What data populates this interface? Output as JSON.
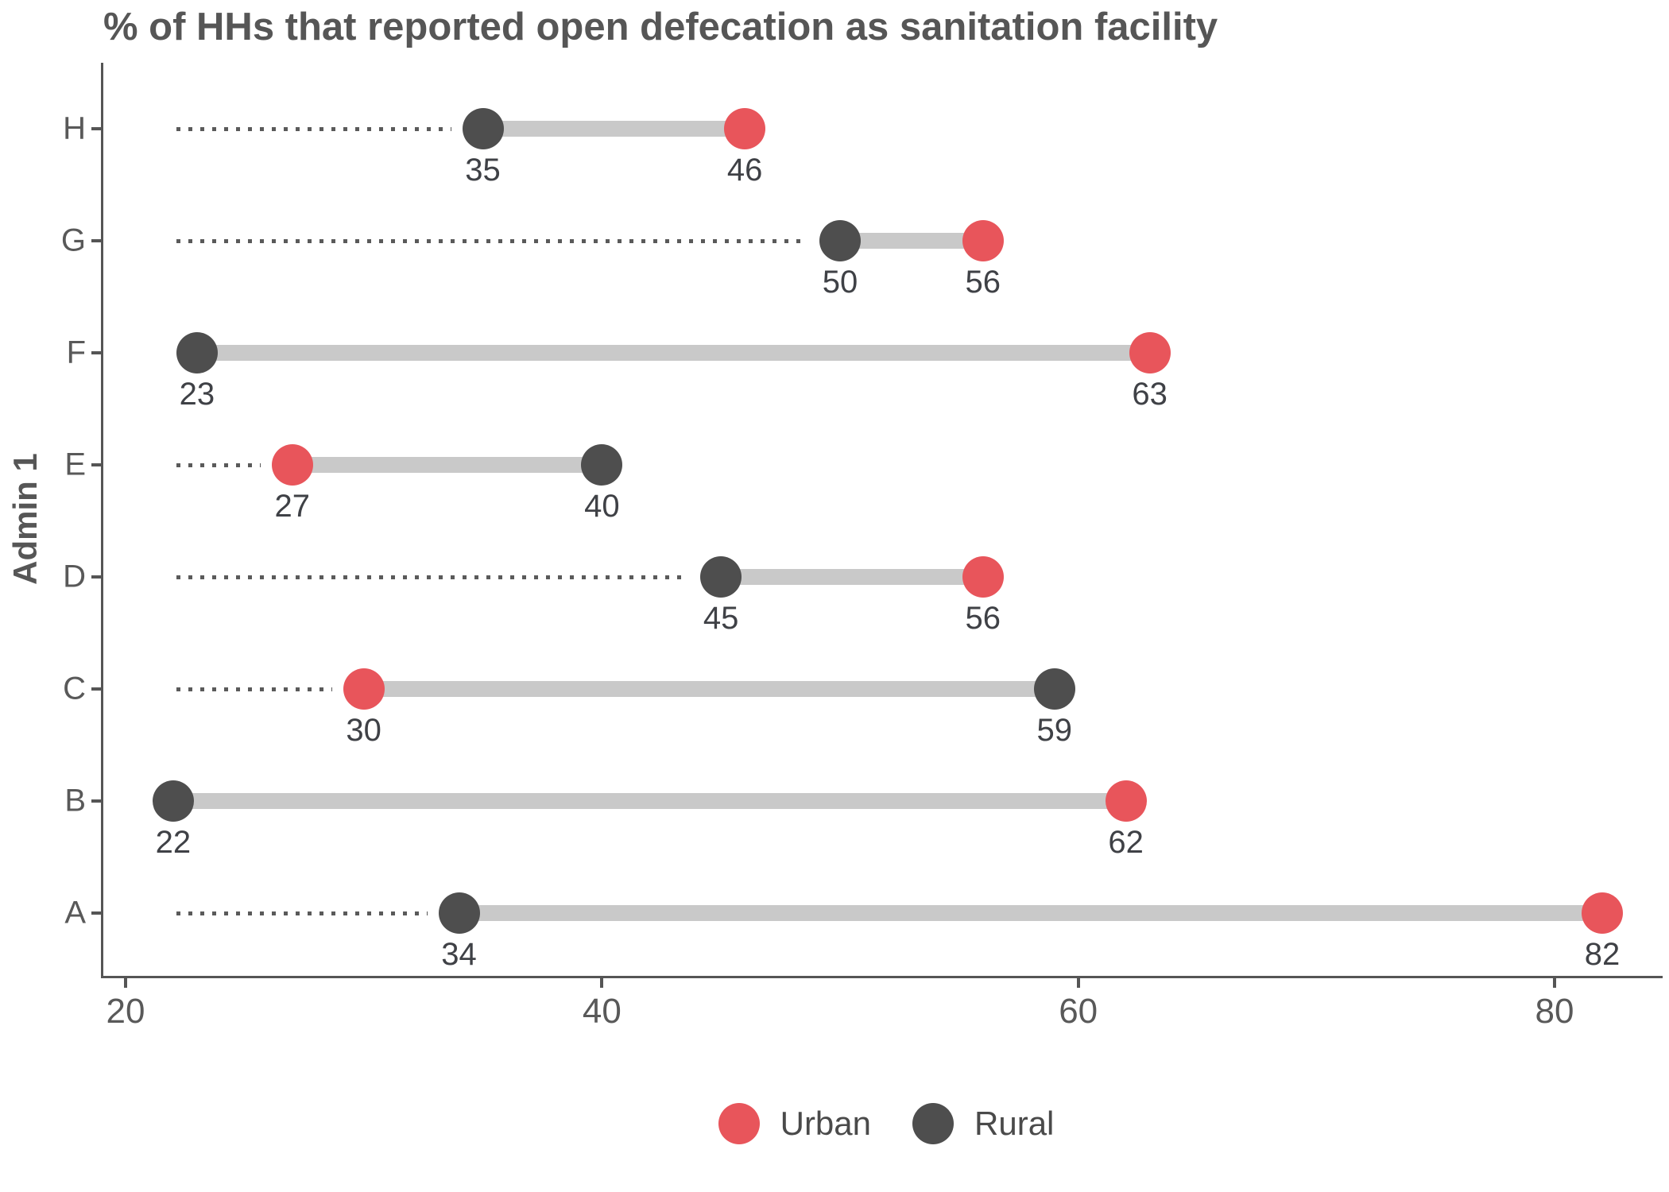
{
  "title": "% of HHs that reported open defecation as sanitation facility",
  "y_axis_label": "Admin 1",
  "legend": [
    {
      "label": "Urban",
      "color": "#E8555B"
    },
    {
      "label": "Rural",
      "color": "#4E4E4E"
    }
  ],
  "colors": {
    "urban": "#E8555B",
    "rural": "#4E4E4E",
    "connector": "#C9C9C9",
    "axis": "#555555",
    "text": "#595959",
    "title": "#565656",
    "value_label": "#3F4146"
  },
  "chart_data": {
    "type": "dumbbell",
    "title": "% of HHs that reported open defecation as sanitation facility",
    "ylabel": "Admin 1",
    "xlabel": "",
    "categories": [
      "H",
      "G",
      "F",
      "E",
      "D",
      "C",
      "B",
      "A"
    ],
    "series": [
      {
        "name": "Urban",
        "color": "#E8555B",
        "values": [
          46,
          56,
          63,
          27,
          56,
          30,
          62,
          82
        ]
      },
      {
        "name": "Rural",
        "color": "#4E4E4E",
        "values": [
          35,
          50,
          23,
          40,
          45,
          59,
          22,
          34
        ]
      }
    ],
    "rows": [
      {
        "category": "H",
        "rural": 35,
        "urban": 46
      },
      {
        "category": "G",
        "rural": 50,
        "urban": 56
      },
      {
        "category": "F",
        "rural": 23,
        "urban": 63
      },
      {
        "category": "E",
        "rural": 40,
        "urban": 27
      },
      {
        "category": "D",
        "rural": 45,
        "urban": 56
      },
      {
        "category": "C",
        "rural": 59,
        "urban": 30
      },
      {
        "category": "B",
        "rural": 22,
        "urban": 62
      },
      {
        "category": "A",
        "rural": 34,
        "urban": 82
      }
    ],
    "x_ticks": [
      20,
      40,
      60,
      80
    ],
    "xlim": [
      18.4,
      84.8
    ],
    "grid": false,
    "leader_line_style": "dotted",
    "legend_position": "bottom"
  }
}
